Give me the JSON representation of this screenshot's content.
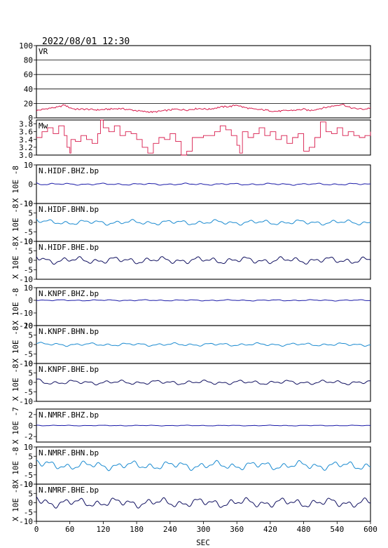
{
  "header": {
    "timestamp": "2022/08/01  12:30"
  },
  "chart_data": {
    "type": "line",
    "xlabel": "SEC",
    "xlim": [
      0,
      600
    ],
    "xticks": [
      0,
      60,
      120,
      180,
      240,
      300,
      360,
      420,
      480,
      540,
      600
    ],
    "panels": [
      {
        "id": "vr",
        "label": "VR",
        "ylabel": "",
        "ylim": [
          0,
          100
        ],
        "yticks": [
          0,
          20,
          40,
          60,
          80,
          100
        ],
        "grid": true,
        "color": "#d81b4c",
        "style": "smooth",
        "series": {
          "name": "VR",
          "x": [
            0,
            20,
            40,
            50,
            60,
            70,
            90,
            110,
            130,
            150,
            170,
            190,
            210,
            230,
            250,
            270,
            290,
            310,
            330,
            350,
            360,
            370,
            390,
            410,
            430,
            450,
            470,
            480,
            490,
            510,
            530,
            550,
            560,
            570,
            590,
            600
          ],
          "y": [
            10,
            13,
            15,
            18,
            14,
            12,
            12,
            11,
            12,
            13,
            11,
            9,
            8,
            10,
            12,
            11,
            13,
            12,
            15,
            16,
            18,
            15,
            12,
            11,
            9,
            10,
            11,
            12,
            10,
            13,
            16,
            19,
            15,
            13,
            12,
            14
          ]
        }
      },
      {
        "id": "mw",
        "label": "Mw",
        "ylabel": "",
        "ylim": [
          3.0,
          3.9
        ],
        "yticks": [
          3.0,
          3.2,
          3.4,
          3.6,
          3.8
        ],
        "grid": false,
        "color": "#d81b4c",
        "style": "step",
        "series": {
          "name": "Mw",
          "x": [
            0,
            10,
            20,
            30,
            40,
            50,
            55,
            60,
            62,
            70,
            80,
            90,
            100,
            110,
            115,
            120,
            130,
            140,
            150,
            160,
            170,
            180,
            190,
            200,
            210,
            220,
            230,
            240,
            250,
            260,
            270,
            280,
            300,
            320,
            330,
            340,
            350,
            360,
            365,
            370,
            380,
            390,
            400,
            410,
            420,
            430,
            440,
            450,
            460,
            470,
            480,
            490,
            500,
            510,
            520,
            530,
            540,
            550,
            560,
            570,
            580,
            590,
            600
          ],
          "y": [
            3.45,
            3.6,
            3.7,
            3.55,
            3.75,
            3.5,
            3.2,
            3.05,
            3.4,
            3.35,
            3.5,
            3.4,
            3.3,
            3.55,
            3.9,
            3.7,
            3.6,
            3.75,
            3.5,
            3.6,
            3.55,
            3.4,
            3.2,
            3.05,
            3.3,
            3.45,
            3.4,
            3.55,
            3.35,
            3.0,
            3.1,
            3.45,
            3.5,
            3.6,
            3.75,
            3.65,
            3.5,
            3.25,
            3.05,
            3.6,
            3.45,
            3.55,
            3.7,
            3.5,
            3.6,
            3.4,
            3.5,
            3.3,
            3.45,
            3.55,
            3.1,
            3.2,
            3.45,
            3.85,
            3.6,
            3.55,
            3.7,
            3.5,
            3.6,
            3.5,
            3.45,
            3.5,
            3.6
          ]
        }
      },
      {
        "id": "hidf-bhz",
        "label": "N.HIDF.BHZ.bp",
        "ylabel": "X 10E -8",
        "ylim": [
          -10,
          10
        ],
        "yticks": [
          -10,
          0,
          10
        ],
        "grid": false,
        "color": "#1a1aa8",
        "style": "wave",
        "amplitude": 0.6,
        "series": {
          "name": "N.HIDF.BHZ.bp",
          "x": [
            0,
            600
          ],
          "y": [
            0,
            0
          ]
        }
      },
      {
        "id": "hidf-bhn",
        "label": "N.HIDF.BHN.bp",
        "ylabel": "X 10E -8",
        "ylim": [
          -10,
          10
        ],
        "yticks": [
          -10,
          -5,
          0,
          5,
          10
        ],
        "grid": false,
        "color": "#1a8ad0",
        "style": "wave",
        "amplitude": 1.6,
        "series": {
          "name": "N.HIDF.BHN.bp",
          "x": [
            0,
            600
          ],
          "y": [
            0,
            0
          ]
        }
      },
      {
        "id": "hidf-bhe",
        "label": "N.HIDF.BHE.bp",
        "ylabel": "X 10E -8",
        "ylim": [
          -10,
          10
        ],
        "yticks": [
          -10,
          -5,
          0,
          5,
          10
        ],
        "grid": false,
        "color": "#101060",
        "style": "wave",
        "amplitude": 2.2,
        "series": {
          "name": "N.HIDF.BHE.bp",
          "x": [
            0,
            600
          ],
          "y": [
            0,
            0
          ]
        }
      },
      {
        "id": "knpf-bhz",
        "label": "N.KNPF.BHZ.bp",
        "ylabel": "X 10E -8",
        "ylim": [
          -20,
          10
        ],
        "yticks": [
          -20,
          -10,
          0,
          10
        ],
        "grid": false,
        "color": "#1a1aa8",
        "style": "wave",
        "amplitude": 0.6,
        "series": {
          "name": "N.KNPF.BHZ.bp",
          "x": [
            0,
            600
          ],
          "y": [
            0,
            0
          ]
        }
      },
      {
        "id": "knpf-bhn",
        "label": "N.KNPF.BHN.bp",
        "ylabel": "X 10E -8",
        "ylim": [
          -10,
          10
        ],
        "yticks": [
          -10,
          -5,
          0,
          5,
          10
        ],
        "grid": false,
        "color": "#1a8ad0",
        "style": "wave",
        "amplitude": 1.0,
        "series": {
          "name": "N.KNPF.BHN.bp",
          "x": [
            0,
            600
          ],
          "y": [
            0,
            0
          ]
        }
      },
      {
        "id": "knpf-bhe",
        "label": "N.KNPF.BHE.bp",
        "ylabel": "X 10E -8",
        "ylim": [
          -10,
          10
        ],
        "yticks": [
          -10,
          -5,
          0,
          5,
          10
        ],
        "grid": false,
        "color": "#101060",
        "style": "wave",
        "amplitude": 1.4,
        "series": {
          "name": "N.KNPF.BHE.bp",
          "x": [
            0,
            600
          ],
          "y": [
            0,
            0
          ]
        }
      },
      {
        "id": "nmrf-bhz",
        "label": "N.NMRF.BHZ.bp",
        "ylabel": "X 10E -7",
        "ylim": [
          -3,
          3
        ],
        "yticks": [
          -2,
          0,
          2
        ],
        "grid": false,
        "color": "#1a1aa8",
        "style": "wave",
        "amplitude": 0.08,
        "series": {
          "name": "N.NMRF.BHZ.bp",
          "x": [
            0,
            600
          ],
          "y": [
            0,
            0
          ]
        }
      },
      {
        "id": "nmrf-bhn",
        "label": "N.NMRF.BHN.bp",
        "ylabel": "X 10E -8",
        "ylim": [
          -10,
          10
        ],
        "yticks": [
          -10,
          -5,
          0,
          5,
          10
        ],
        "grid": false,
        "color": "#1a8ad0",
        "style": "wave",
        "amplitude": 2.8,
        "series": {
          "name": "N.NMRF.BHN.bp",
          "x": [
            0,
            600
          ],
          "y": [
            0,
            0
          ]
        }
      },
      {
        "id": "nmrf-bhe",
        "label": "N.NMRF.BHE.bp",
        "ylabel": "X 10E -8",
        "ylim": [
          -10,
          10
        ],
        "yticks": [
          -10,
          -5,
          0,
          5,
          10
        ],
        "grid": false,
        "color": "#101060",
        "style": "wave",
        "amplitude": 3.0,
        "series": {
          "name": "N.NMRF.BHE.bp",
          "x": [
            0,
            600
          ],
          "y": [
            0,
            0
          ]
        }
      }
    ]
  }
}
